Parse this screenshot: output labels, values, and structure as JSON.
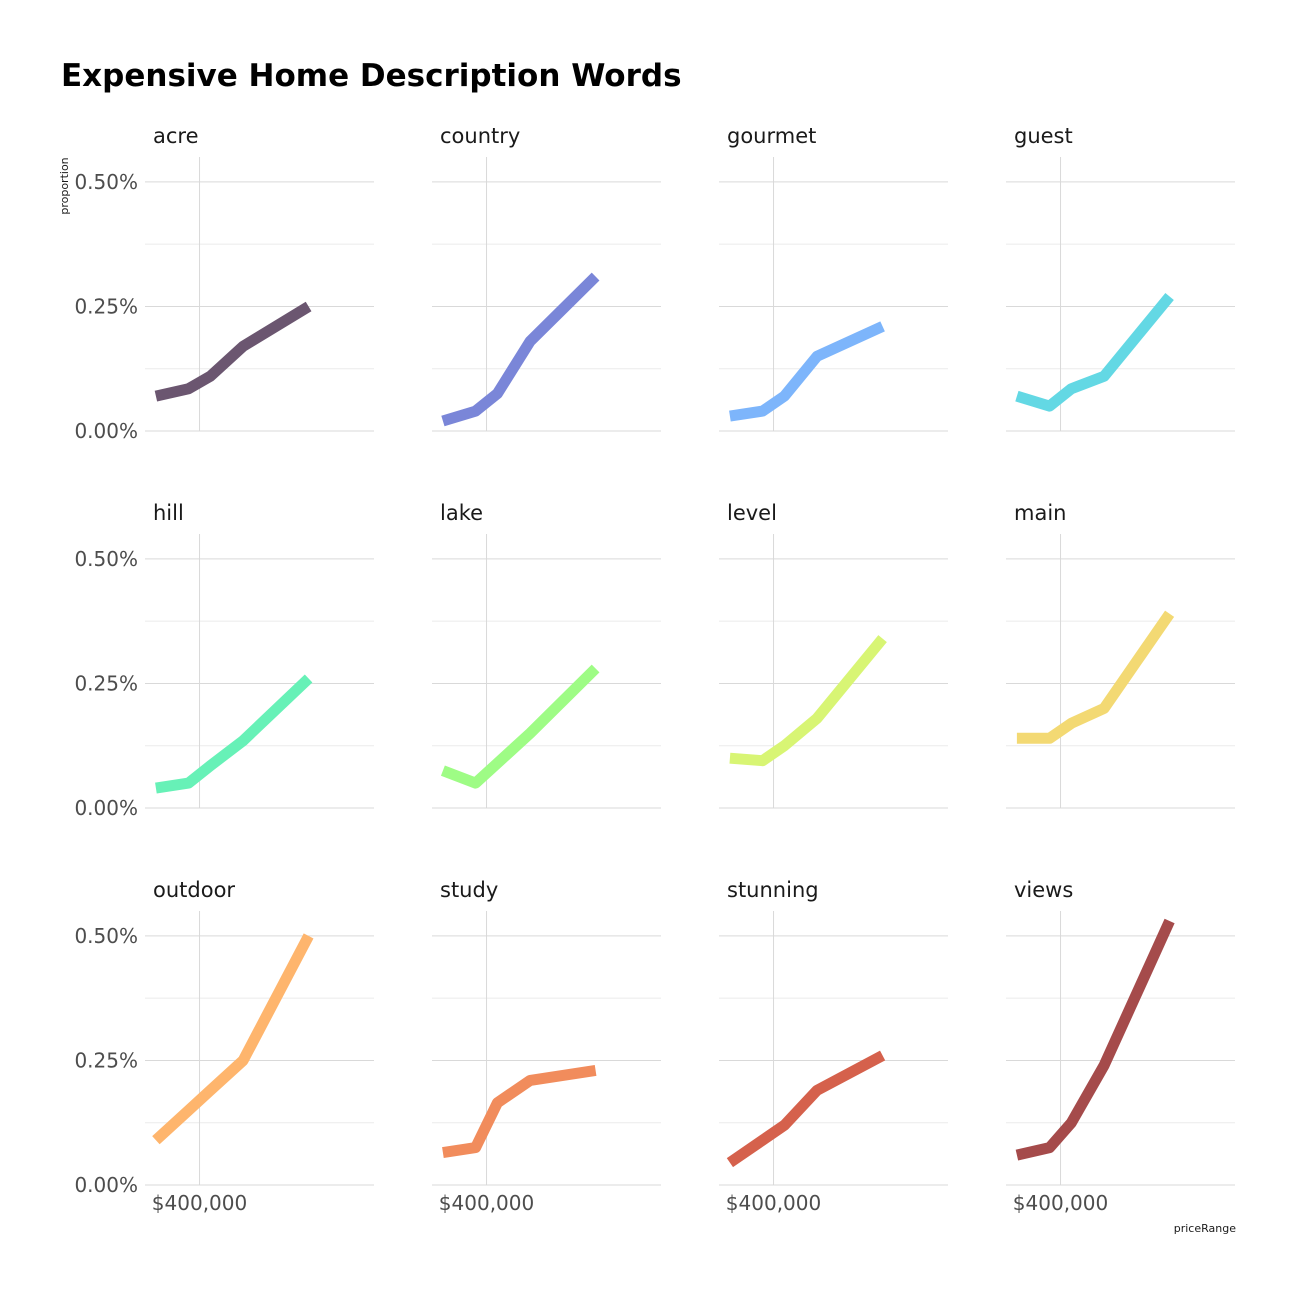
{
  "chart_data": {
    "type": "line",
    "title": "Expensive Home Description Words",
    "xlabel": "priceRange",
    "ylabel": "proportion",
    "ylim": [
      0,
      0.0055
    ],
    "yticks": [
      0,
      0.0025,
      0.005
    ],
    "ytick_labels": [
      "0.00%",
      "0.25%",
      "0.50%"
    ],
    "xlim": [
      150000,
      1200000
    ],
    "xticks": [
      400000
    ],
    "xtick_labels": [
      "$400,000"
    ],
    "x": [
      200000,
      350000,
      450000,
      600000,
      900000
    ],
    "grid": true,
    "facets": [
      {
        "name": "acre",
        "color": "#6b5670",
        "values": [
          0.0007,
          0.00085,
          0.0011,
          0.0017,
          0.0025
        ]
      },
      {
        "name": "country",
        "color": "#7a86d8",
        "values": [
          0.0002,
          0.0004,
          0.00075,
          0.0018,
          0.0031
        ]
      },
      {
        "name": "gourmet",
        "color": "#7db5fb",
        "values": [
          0.0003,
          0.0004,
          0.0007,
          0.0015,
          0.0021
        ]
      },
      {
        "name": "guest",
        "color": "#63d8e4",
        "values": [
          0.0007,
          0.0005,
          0.00085,
          0.0011,
          0.0027
        ]
      },
      {
        "name": "hill",
        "color": "#67f1b7",
        "values": [
          0.0004,
          0.0005,
          0.00085,
          0.00135,
          0.0026
        ]
      },
      {
        "name": "lake",
        "color": "#9efc85",
        "values": [
          0.00075,
          0.0005,
          0.0009,
          0.0015,
          0.0028
        ]
      },
      {
        "name": "level",
        "color": "#d8f574",
        "values": [
          0.001,
          0.00095,
          0.00125,
          0.0018,
          0.0034
        ]
      },
      {
        "name": "main",
        "color": "#f3d973",
        "values": [
          0.0014,
          0.0014,
          0.0017,
          0.002,
          0.0039
        ]
      },
      {
        "name": "outdoor",
        "color": "#feb56d",
        "values": [
          0.0009,
          0.0015,
          0.0019,
          0.0025,
          0.005
        ]
      },
      {
        "name": "study",
        "color": "#f18c5c",
        "values": [
          0.00065,
          0.00075,
          0.00165,
          0.0021,
          0.0023
        ]
      },
      {
        "name": "stunning",
        "color": "#d5614c",
        "values": [
          0.00045,
          0.0009,
          0.0012,
          0.0019,
          0.0026
        ]
      },
      {
        "name": "views",
        "color": "#a54b4b",
        "values": [
          0.0006,
          0.00075,
          0.00125,
          0.0024,
          0.0053
        ]
      }
    ]
  }
}
